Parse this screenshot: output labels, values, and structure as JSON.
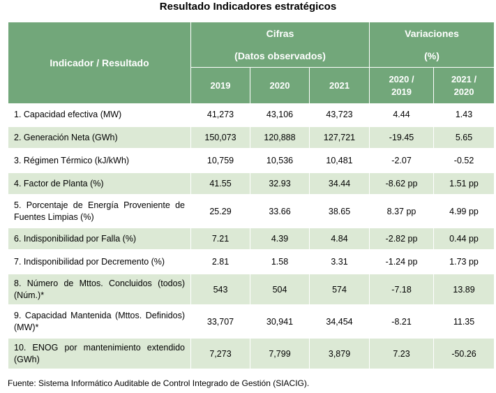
{
  "title": "Resultado Indicadores estratégicos",
  "header": {
    "indicator": "Indicador / Resultado",
    "cifras_line1": "Cifras",
    "cifras_line2": "(Datos observados)",
    "variaciones_line1": "Variaciones",
    "variaciones_line2": "(%)",
    "years": [
      "2019",
      "2020",
      "2021"
    ],
    "var1_line1": "2020 /",
    "var1_line2": "2019",
    "var2_line1": "2021 /",
    "var2_line2": "2020"
  },
  "rows": [
    {
      "label": "1. Capacidad efectiva (MW)",
      "v2019": "41,273",
      "v2020": "43,106",
      "v2021": "43,723",
      "var1": "4.44",
      "var2": "1.43"
    },
    {
      "label": "2. Generación Neta (GWh)",
      "v2019": "150,073",
      "v2020": "120,888",
      "v2021": "127,721",
      "var1": "-19.45",
      "var2": "5.65"
    },
    {
      "label": "3. Régimen Térmico (kJ/kWh)",
      "v2019": "10,759",
      "v2020": "10,536",
      "v2021": "10,481",
      "var1": "-2.07",
      "var2": "-0.52"
    },
    {
      "label": "4. Factor de Planta (%)",
      "v2019": "41.55",
      "v2020": "32.93",
      "v2021": "34.44",
      "var1": "-8.62 pp",
      "var2": "1.51 pp"
    },
    {
      "label": "5. Porcentaje de Energía Proveniente de Fuentes Limpias (%)",
      "v2019": "25.29",
      "v2020": "33.66",
      "v2021": "38.65",
      "var1": "8.37 pp",
      "var2": "4.99 pp"
    },
    {
      "label": "6. Indisponibilidad por Falla (%)",
      "v2019": "7.21",
      "v2020": "4.39",
      "v2021": "4.84",
      "var1": "-2.82 pp",
      "var2": "0.44 pp"
    },
    {
      "label": "7. Indisponibilidad por Decremento (%)",
      "v2019": "2.81",
      "v2020": "1.58",
      "v2021": "3.31",
      "var1": "-1.24 pp",
      "var2": "1.73 pp"
    },
    {
      "label": "8. Número de Mttos. Concluidos (todos) (Núm.)*",
      "v2019": "543",
      "v2020": "504",
      "v2021": "574",
      "var1": "-7.18",
      "var2": "13.89"
    },
    {
      "label": "9. Capacidad Mantenida (Mttos. Definidos) (MW)*",
      "v2019": "33,707",
      "v2020": "30,941",
      "v2021": "34,454",
      "var1": "-8.21",
      "var2": "11.35"
    },
    {
      "label": "10. ENOG por mantenimiento extendido (GWh)",
      "v2019": "7,273",
      "v2020": "7,799",
      "v2021": "3,879",
      "var1": "7.23",
      "var2": "-50.26"
    }
  ],
  "source": "Fuente: Sistema Informático Auditable de Control Integrado de Gestión (SIACIG).",
  "colors": {
    "header_bg": "#72a77a",
    "shade_bg": "#dce9d5"
  }
}
